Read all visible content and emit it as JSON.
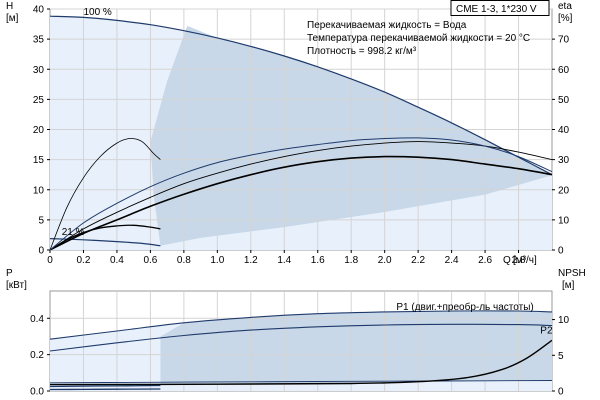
{
  "chart_data": {
    "type": "line",
    "title": "CME 1-3, 1*230 V",
    "info_lines": [
      "Перекачиваемая жидкость = Вода",
      "Температура перекачиваемой жидкости = 20 °C",
      "Плотность = 998.2 кг/м³"
    ],
    "colors": {
      "area_light": "#e8f1fb",
      "area_dark": "#c8d8e8",
      "navy": "#1f3a6b",
      "black": "#000000"
    },
    "top": {
      "ylabel": "H",
      "yunit": "[м]",
      "ylabel_right": "eta",
      "yunit_right": "[%]",
      "xlabel": "Q",
      "xunit": "[м³/ч]",
      "xlim": [
        0,
        3.0
      ],
      "ylim": [
        0,
        40
      ],
      "ylim_right": [
        0,
        80
      ],
      "xticks": [
        0,
        0.2,
        0.4,
        0.6,
        0.8,
        1.0,
        1.2,
        1.4,
        1.6,
        1.8,
        2.0,
        2.2,
        2.4,
        2.6,
        2.8
      ],
      "xtick_labels": [
        "0",
        "0.2",
        "0.4",
        "0.6",
        "0.8",
        "1.0",
        "1.2",
        "1.4",
        "1.6",
        "1.8",
        "2.0",
        "2.2",
        "2.4",
        "2.6",
        "2.8"
      ],
      "yticks": [
        0,
        5,
        10,
        15,
        20,
        25,
        30,
        35,
        40
      ],
      "ytick_labels": [
        "0",
        "5",
        "10",
        "15",
        "20",
        "25",
        "30",
        "35",
        "40"
      ],
      "yticks_right": [
        0,
        10,
        20,
        30,
        40,
        50,
        60,
        70
      ],
      "ytick_labels_right": [
        "0",
        "10",
        "20",
        "30",
        "40",
        "50",
        "60",
        "70"
      ],
      "annotations": [
        {
          "text": "100 %",
          "x": 0.2,
          "y": 39
        },
        {
          "text": "21 %",
          "x": 0.07,
          "y": 2.5
        }
      ],
      "series": [
        {
          "role": "head_max",
          "axis": "left",
          "x": [
            0,
            0.2,
            0.4,
            0.6,
            0.8,
            1.0,
            1.2,
            1.4,
            1.6,
            1.8,
            2.0,
            2.2,
            2.4,
            2.6,
            2.8,
            3.0
          ],
          "y": [
            38.8,
            38.6,
            38.1,
            37.4,
            36.4,
            35.2,
            33.8,
            32.2,
            30.4,
            28.4,
            26.2,
            23.7,
            21.1,
            18.3,
            15.4,
            12.5
          ]
        },
        {
          "role": "head_min",
          "axis": "left",
          "x": [
            0,
            0.2,
            0.4,
            0.55,
            0.66
          ],
          "y": [
            1.9,
            1.7,
            1.4,
            1.1,
            0.7
          ]
        },
        {
          "role": "eta_thin_1",
          "axis": "right",
          "x": [
            0,
            0.1,
            0.2,
            0.3,
            0.4,
            0.48,
            0.55,
            0.62,
            0.66
          ],
          "y": [
            0,
            14,
            24,
            31,
            35.5,
            37,
            36,
            32,
            30
          ]
        },
        {
          "role": "eta_thin_2",
          "axis": "right",
          "x": [
            0,
            0.1,
            0.2,
            0.3,
            0.4,
            0.5,
            0.6,
            0.66
          ],
          "y": [
            0,
            3.4,
            5.8,
            7.3,
            8.0,
            8.2,
            7.6,
            7
          ]
        },
        {
          "role": "eta_medium_1",
          "axis": "right",
          "x": [
            0,
            0.2,
            0.4,
            0.6,
            0.8,
            1.0,
            1.2,
            1.4,
            1.6,
            1.8,
            2.0,
            2.2,
            2.4,
            2.6,
            2.8,
            3.0
          ],
          "y": [
            0,
            7,
            12.5,
            17.5,
            22,
            25.5,
            28.5,
            31,
            33,
            34.5,
            35.5,
            36,
            35.5,
            34.5,
            32.5,
            30
          ]
        },
        {
          "role": "eta_bold",
          "axis": "right",
          "x": [
            0,
            0.2,
            0.4,
            0.6,
            0.8,
            1.0,
            1.2,
            1.4,
            1.6,
            1.8,
            2.0,
            2.2,
            2.4,
            2.6,
            2.8,
            3.0
          ],
          "y": [
            0,
            5.5,
            10,
            14.5,
            18.5,
            22,
            25,
            27.5,
            29.3,
            30.5,
            31,
            30.8,
            30,
            28.5,
            27,
            25
          ]
        },
        {
          "role": "eta_navy",
          "axis": "right",
          "x": [
            0,
            0.2,
            0.4,
            0.6,
            0.8,
            1.0,
            1.2,
            1.4,
            1.6,
            1.8,
            2.0,
            2.2,
            2.4,
            2.6,
            2.8,
            3.0
          ],
          "y": [
            0,
            9,
            15.5,
            21,
            25.5,
            29,
            31.5,
            33.5,
            35,
            36.3,
            37,
            37.2,
            36.5,
            34.5,
            31,
            26
          ]
        }
      ]
    },
    "bottom": {
      "ylabel": "P",
      "yunit": "[кВт]",
      "ylabel_right": "NPSH",
      "yunit_right": "[м]",
      "xlim": [
        0,
        3.0
      ],
      "ylim": [
        0,
        0.55
      ],
      "ylim_right": [
        0,
        14
      ],
      "yticks": [
        0,
        0.2,
        0.4
      ],
      "ytick_labels": [
        "0.0",
        "0.2",
        "0.4"
      ],
      "yticks_right": [
        0,
        5,
        10
      ],
      "ytick_labels_right": [
        "0",
        "5",
        "10"
      ],
      "labels": [
        {
          "text": "P1 (двиг.+преобр-ль частоты)",
          "x": 2.07,
          "y": 0.445
        },
        {
          "text": "P2",
          "x": 2.93,
          "y": 0.315
        }
      ],
      "series": [
        {
          "role": "p1_max",
          "axis": "left",
          "x": [
            0,
            0.4,
            0.8,
            1.2,
            1.6,
            2.0,
            2.4,
            2.8,
            3.0
          ],
          "y": [
            0.285,
            0.33,
            0.375,
            0.405,
            0.425,
            0.435,
            0.44,
            0.44,
            0.435
          ]
        },
        {
          "role": "p2_max",
          "axis": "left",
          "x": [
            0,
            0.4,
            0.8,
            1.2,
            1.6,
            2.0,
            2.4,
            2.8,
            3.0
          ],
          "y": [
            0.22,
            0.265,
            0.305,
            0.335,
            0.353,
            0.363,
            0.367,
            0.365,
            0.36
          ]
        },
        {
          "role": "p1_min",
          "axis": "left",
          "x": [
            0,
            0.2,
            0.4,
            0.66
          ],
          "y": [
            0.025,
            0.027,
            0.028,
            0.03
          ]
        },
        {
          "role": "p2_min",
          "axis": "left",
          "x": [
            0,
            0.2,
            0.4,
            0.66
          ],
          "y": [
            0.008,
            0.009,
            0.01,
            0.011
          ]
        },
        {
          "role": "p_navy_flat",
          "axis": "left",
          "x": [
            0,
            0.6,
            1.0,
            1.6,
            2.0,
            2.6,
            3.0
          ],
          "y": [
            0.045,
            0.048,
            0.05,
            0.052,
            0.054,
            0.056,
            0.058
          ]
        },
        {
          "role": "npsh",
          "axis": "right",
          "x": [
            0,
            1.0,
            1.8,
            2.2,
            2.5,
            2.7,
            2.85,
            3.0
          ],
          "y": [
            0.9,
            0.95,
            1.05,
            1.3,
            1.9,
            3.0,
            4.6,
            7.1
          ]
        }
      ]
    }
  }
}
